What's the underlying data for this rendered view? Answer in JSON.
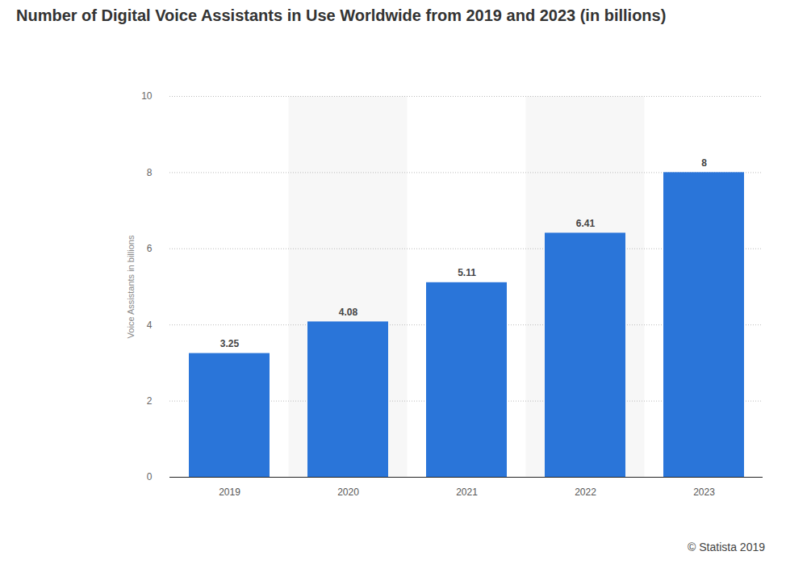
{
  "chart_data": {
    "type": "bar",
    "title": "Number of Digital Voice Assistants in Use Worldwide from 2019 and 2023 (in billions)",
    "y_label": "Voice Assistants in billions",
    "source": "© Statista 2019",
    "categories": [
      "2019",
      "2020",
      "2021",
      "2022",
      "2023"
    ],
    "values": [
      3.25,
      4.08,
      5.11,
      6.41,
      8
    ],
    "color": "#2a75d9",
    "ylim": [
      0,
      10
    ],
    "yticks": [
      0,
      2,
      4,
      6,
      8,
      10
    ],
    "grid": true,
    "data_labels": true
  }
}
